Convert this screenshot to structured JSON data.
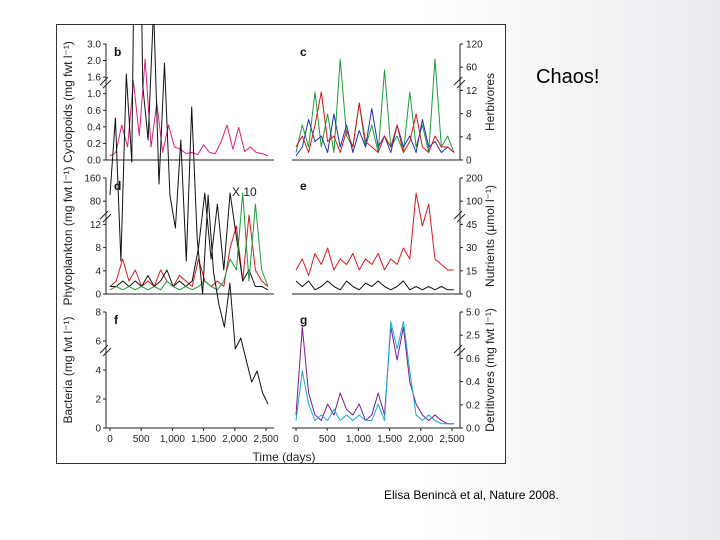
{
  "slide": {
    "title": "Chaos!",
    "citation": "Elisa Benincà et al, Nature 2008."
  },
  "colors": {
    "pink": "#d6207f",
    "green": "#1f9a3a",
    "blue": "#2030a8",
    "red": "#d21a20",
    "black": "#111111",
    "cyan": "#1aa6d6",
    "purple": "#7a1a8a"
  },
  "chart_data": {
    "type": "line",
    "panels": [
      {
        "id": "b",
        "label": "b",
        "y_ticks": [
          "3.0",
          "2.0",
          "1.6",
          "1.0",
          "0.6",
          "0.4",
          "0.2",
          "0.0"
        ],
        "ylabel": "Cyclopoids (mg fwt l⁻¹)",
        "x_ticks": [],
        "series": [
          {
            "color": "pink",
            "values": [
              0.02,
              0.05,
              0.3,
              0.1,
              0.7,
              0.2,
              0.9,
              0.1,
              0.5,
              0.05,
              0.3,
              0.1,
              0.08,
              0.04,
              0.05,
              0.03,
              0.12,
              0.05,
              0.04,
              0.15,
              0.3,
              0.08,
              0.28,
              0.06,
              0.1,
              0.05,
              0.04,
              0.02
            ]
          }
        ]
      },
      {
        "id": "c",
        "label": "c",
        "y_ticks": [
          "120",
          "60",
          "12",
          "8",
          "4",
          "0"
        ],
        "ylabel": "Herbivores",
        "x_ticks": [],
        "series": [
          {
            "color": "green",
            "values": [
              0.05,
              0.3,
              0.1,
              0.6,
              0.1,
              0.4,
              0.05,
              0.9,
              0.2,
              0.1,
              0.5,
              0.1,
              0.3,
              0.05,
              0.8,
              0.1,
              0.2,
              0.05,
              0.6,
              0.1,
              0.3,
              0.05,
              0.9,
              0.1,
              0.2,
              0.05
            ]
          },
          {
            "color": "blue",
            "values": [
              0.02,
              0.1,
              0.35,
              0.15,
              0.2,
              0.05,
              0.4,
              0.1,
              0.3,
              0.05,
              0.25,
              0.1,
              0.45,
              0.1,
              0.2,
              0.05,
              0.3,
              0.1,
              0.2,
              0.05,
              0.35,
              0.1,
              0.15,
              0.05,
              0.1,
              0.05
            ]
          },
          {
            "color": "red",
            "values": [
              0.1,
              0.2,
              0.05,
              0.3,
              0.6,
              0.15,
              0.2,
              0.05,
              0.25,
              0.1,
              0.5,
              0.15,
              0.1,
              0.05,
              0.2,
              0.1,
              0.3,
              0.05,
              0.15,
              0.4,
              0.1,
              0.05,
              0.2,
              0.1,
              0.1,
              0.05
            ]
          }
        ]
      },
      {
        "id": "d",
        "label": "d",
        "annotation": "X 10",
        "y_ticks": [
          "160",
          "80",
          "12",
          "8",
          "4",
          "0"
        ],
        "ylabel": "Phytoplankton (mg fwt l⁻¹)",
        "x_ticks": [],
        "series": [
          {
            "color": "red",
            "values": [
              0.05,
              0.1,
              0.3,
              0.1,
              0.2,
              0.05,
              0.1,
              0.05,
              0.2,
              0.1,
              0.05,
              0.15,
              0.1,
              0.05,
              0.3,
              0.1,
              0.05,
              0.1,
              0.05,
              0.4,
              0.6,
              0.1,
              0.7,
              0.2,
              0.1,
              0.05
            ]
          },
          {
            "color": "black",
            "values": [
              0.05,
              0.05,
              0.1,
              0.05,
              0.1,
              0.05,
              0.15,
              0.05,
              0.1,
              0.2,
              0.05,
              0.1,
              0.05,
              0.1,
              0.4,
              0.9,
              0.3,
              0.8,
              0.2,
              0.9,
              0.5,
              0.1,
              0.2,
              0.05,
              0.05,
              0.02
            ]
          },
          {
            "color": "green",
            "values": [
              0.02,
              0.05,
              0.02,
              0.05,
              0.02,
              0.05,
              0.02,
              0.05,
              0.02,
              0.1,
              0.05,
              0.02,
              0.05,
              0.02,
              0.05,
              0.1,
              0.05,
              0.02,
              0.1,
              0.3,
              0.2,
              0.9,
              0.1,
              0.8,
              0.2,
              0.05
            ]
          }
        ]
      },
      {
        "id": "e",
        "label": "e",
        "y_ticks": [
          "200",
          "100",
          "45",
          "30",
          "15",
          "0"
        ],
        "ylabel": "Nutrients (μmol l⁻¹)",
        "x_ticks": [],
        "series": [
          {
            "color": "red",
            "values": [
              0.2,
              0.3,
              0.15,
              0.35,
              0.25,
              0.4,
              0.2,
              0.3,
              0.25,
              0.35,
              0.2,
              0.3,
              0.25,
              0.35,
              0.2,
              0.3,
              0.25,
              0.4,
              0.3,
              0.9,
              0.6,
              0.8,
              0.3,
              0.25,
              0.2,
              0.2
            ]
          },
          {
            "color": "black",
            "values": [
              0.1,
              0.05,
              0.1,
              0.02,
              0.05,
              0.1,
              0.05,
              0.02,
              0.1,
              0.05,
              0.02,
              0.08,
              0.05,
              0.1,
              0.05,
              0.02,
              0.05,
              0.1,
              0.02,
              0.05,
              0.02,
              0.05,
              0.02,
              0.05,
              0.02,
              0.02
            ]
          }
        ]
      },
      {
        "id": "f",
        "label": "f",
        "y_ticks": [
          "8",
          "6",
          "4",
          "2",
          "0"
        ],
        "ylabel": "Bacteria (mg fwt l⁻¹)",
        "x_ticks": [
          "0",
          "500",
          "1,000",
          "1,500",
          "2,000",
          "2,500"
        ],
        "xlim": [
          0,
          2500
        ],
        "series": [
          {
            "color": "black",
            "values": [
              2.1,
              2.8,
              1.5,
              3.2,
              2.4,
              6.8,
              3.1,
              2.6,
              3.8,
              2.2,
              3.3,
              2.1,
              1.8,
              2.6,
              1.5,
              2.9,
              1.7,
              1.2,
              2.1,
              1.4,
              1.1,
              0.9,
              1.3,
              0.7,
              0.8,
              0.6,
              0.4,
              0.5,
              0.3,
              0.2
            ]
          }
        ]
      },
      {
        "id": "g",
        "label": "g",
        "y_ticks": [
          "5.0",
          "2.5",
          "0.6",
          "0.4",
          "0.2",
          "0.0"
        ],
        "ylabel": "Detritivores (mg fwt l⁻¹)",
        "x_ticks": [
          "0",
          "500",
          "1,000",
          "1,500",
          "2,000",
          "2,500"
        ],
        "xlim": [
          0,
          2500
        ],
        "series": [
          {
            "color": "purple",
            "values": [
              0.1,
              0.9,
              0.3,
              0.1,
              0.05,
              0.2,
              0.1,
              0.3,
              0.15,
              0.1,
              0.2,
              0.05,
              0.1,
              0.3,
              0.1,
              0.9,
              0.6,
              0.9,
              0.4,
              0.2,
              0.1,
              0.05,
              0.1,
              0.05,
              0.02,
              0.02
            ]
          },
          {
            "color": "cyan",
            "values": [
              0.05,
              0.5,
              0.2,
              0.05,
              0.1,
              0.05,
              0.15,
              0.05,
              0.1,
              0.05,
              0.1,
              0.05,
              0.05,
              0.2,
              0.05,
              0.95,
              0.7,
              0.95,
              0.5,
              0.1,
              0.05,
              0.1,
              0.05,
              0.02,
              0.02,
              0.02
            ]
          }
        ]
      }
    ],
    "xlabel": "Time (days)"
  }
}
